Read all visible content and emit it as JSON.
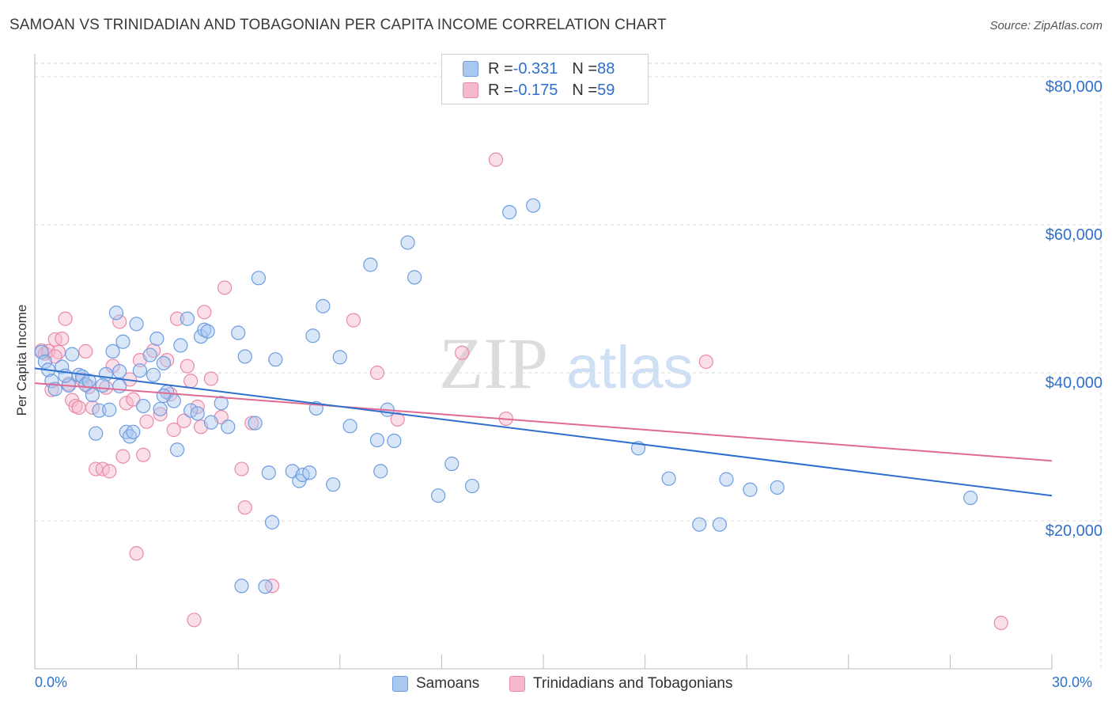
{
  "title": "SAMOAN VS TRINIDADIAN AND TOBAGONIAN PER CAPITA INCOME CORRELATION CHART",
  "source": "Source: ZipAtlas.com",
  "watermark": {
    "zip": "ZIP",
    "atlas": "atlas"
  },
  "legend_top": {
    "rows": [
      {
        "r_label": "R = ",
        "r_value": "-0.331",
        "n_label": "N = ",
        "n_value": "88"
      },
      {
        "r_label": "R = ",
        "r_value": "-0.175",
        "n_label": "N = ",
        "n_value": "59"
      }
    ]
  },
  "legend_bottom": {
    "series1": "Samoans",
    "series2": "Trinidadians and Tobagonians"
  },
  "colors": {
    "blue_fill": "#a9c8f0",
    "blue_stroke": "#6d9de0",
    "blue_line": "#2f6fce",
    "pink_fill": "#f6b9cc",
    "pink_stroke": "#e88aa8",
    "pink_line": "#e06a92",
    "grid": "#d9d9d9",
    "accent_text": "#2f6fce"
  },
  "chart_data": {
    "type": "scatter",
    "title": "SAMOAN VS TRINIDADIAN AND TOBAGONIAN PER CAPITA INCOME CORRELATION CHART",
    "xlabel": "",
    "ylabel": "Per Capita Income",
    "xlim": [
      0,
      30
    ],
    "ylim": [
      0,
      80000
    ],
    "x_tick_labels": [
      "0.0%",
      "30.0%"
    ],
    "y_ticks": [
      20000,
      40000,
      60000,
      80000
    ],
    "y_tick_labels": [
      "$20,000",
      "$40,000",
      "$60,000",
      "$80,000"
    ],
    "grid": true,
    "legend_position": "top-center",
    "series": [
      {
        "name": "Samoans",
        "r": -0.331,
        "n": 88,
        "trend": {
          "x": [
            0,
            30
          ],
          "y": [
            40600,
            23400
          ]
        },
        "points": [
          [
            0.2,
            42800
          ],
          [
            0.3,
            41500
          ],
          [
            0.4,
            40400
          ],
          [
            0.5,
            38900
          ],
          [
            0.6,
            37800
          ],
          [
            0.8,
            40800
          ],
          [
            1.0,
            38300
          ],
          [
            1.1,
            42500
          ],
          [
            1.3,
            39700
          ],
          [
            1.4,
            39500
          ],
          [
            1.5,
            38400
          ],
          [
            1.7,
            37000
          ],
          [
            1.8,
            31800
          ],
          [
            1.9,
            34900
          ],
          [
            2.1,
            39800
          ],
          [
            2.2,
            35000
          ],
          [
            2.3,
            42900
          ],
          [
            2.4,
            48100
          ],
          [
            2.5,
            38200
          ],
          [
            2.6,
            44200
          ],
          [
            2.7,
            32000
          ],
          [
            2.8,
            31400
          ],
          [
            2.9,
            32000
          ],
          [
            3.0,
            46600
          ],
          [
            3.1,
            40300
          ],
          [
            3.2,
            35500
          ],
          [
            3.4,
            42400
          ],
          [
            3.5,
            39700
          ],
          [
            3.6,
            44600
          ],
          [
            3.7,
            35100
          ],
          [
            3.8,
            41300
          ],
          [
            3.9,
            37400
          ],
          [
            4.1,
            36200
          ],
          [
            4.2,
            29600
          ],
          [
            4.3,
            43700
          ],
          [
            4.5,
            47300
          ],
          [
            4.6,
            34900
          ],
          [
            4.8,
            34500
          ],
          [
            4.9,
            44900
          ],
          [
            5.0,
            45800
          ],
          [
            5.1,
            45600
          ],
          [
            5.2,
            33300
          ],
          [
            5.5,
            35900
          ],
          [
            5.7,
            32700
          ],
          [
            6.0,
            45400
          ],
          [
            6.2,
            42200
          ],
          [
            6.5,
            33200
          ],
          [
            6.6,
            52800
          ],
          [
            6.9,
            26500
          ],
          [
            7.0,
            19800
          ],
          [
            7.1,
            41800
          ],
          [
            7.6,
            26700
          ],
          [
            7.8,
            25400
          ],
          [
            7.9,
            26200
          ],
          [
            8.1,
            26500
          ],
          [
            8.2,
            45000
          ],
          [
            8.3,
            35200
          ],
          [
            8.5,
            49000
          ],
          [
            8.8,
            24900
          ],
          [
            9.0,
            42100
          ],
          [
            9.3,
            32800
          ],
          [
            9.9,
            54600
          ],
          [
            10.1,
            30900
          ],
          [
            10.2,
            26700
          ],
          [
            10.4,
            35000
          ],
          [
            10.6,
            30800
          ],
          [
            11.0,
            57600
          ],
          [
            11.2,
            52900
          ],
          [
            11.9,
            23400
          ],
          [
            12.3,
            27700
          ],
          [
            12.9,
            24700
          ],
          [
            14.0,
            61700
          ],
          [
            14.7,
            62600
          ],
          [
            17.8,
            29800
          ],
          [
            18.7,
            25700
          ],
          [
            19.6,
            19500
          ],
          [
            20.2,
            19500
          ],
          [
            20.4,
            25600
          ],
          [
            21.1,
            24200
          ],
          [
            21.9,
            24500
          ],
          [
            27.6,
            23100
          ],
          [
            6.1,
            11200
          ],
          [
            6.8,
            11100
          ],
          [
            3.8,
            36900
          ],
          [
            2.0,
            38300
          ],
          [
            1.6,
            38900
          ],
          [
            0.9,
            39600
          ],
          [
            2.5,
            40200
          ]
        ]
      },
      {
        "name": "Trinidadians and Tobagonians",
        "r": -0.175,
        "n": 59,
        "trend": {
          "x": [
            0,
            30
          ],
          "y": [
            38600,
            28100
          ]
        },
        "points": [
          [
            0.2,
            43000
          ],
          [
            0.3,
            42600
          ],
          [
            0.4,
            42900
          ],
          [
            0.5,
            37700
          ],
          [
            0.6,
            44500
          ],
          [
            0.7,
            42800
          ],
          [
            0.8,
            44600
          ],
          [
            0.9,
            47300
          ],
          [
            1.0,
            38500
          ],
          [
            1.1,
            36300
          ],
          [
            1.2,
            35500
          ],
          [
            1.3,
            35300
          ],
          [
            1.4,
            39100
          ],
          [
            1.5,
            42900
          ],
          [
            1.6,
            38100
          ],
          [
            1.7,
            35300
          ],
          [
            1.8,
            27000
          ],
          [
            2.0,
            27000
          ],
          [
            2.2,
            26700
          ],
          [
            2.3,
            40900
          ],
          [
            2.5,
            46900
          ],
          [
            2.6,
            28700
          ],
          [
            2.7,
            35900
          ],
          [
            2.8,
            39100
          ],
          [
            2.9,
            36400
          ],
          [
            3.0,
            15600
          ],
          [
            3.1,
            41700
          ],
          [
            3.2,
            28900
          ],
          [
            3.3,
            33400
          ],
          [
            3.5,
            43000
          ],
          [
            3.7,
            34400
          ],
          [
            3.9,
            41700
          ],
          [
            4.0,
            37100
          ],
          [
            4.1,
            32300
          ],
          [
            4.2,
            47300
          ],
          [
            4.4,
            33500
          ],
          [
            4.5,
            40900
          ],
          [
            4.6,
            38900
          ],
          [
            4.8,
            35400
          ],
          [
            4.9,
            32700
          ],
          [
            5.0,
            48200
          ],
          [
            5.2,
            39200
          ],
          [
            5.5,
            34000
          ],
          [
            5.6,
            51500
          ],
          [
            6.1,
            27000
          ],
          [
            6.2,
            21800
          ],
          [
            6.4,
            33200
          ],
          [
            7.0,
            11200
          ],
          [
            4.7,
            6600
          ],
          [
            9.4,
            47100
          ],
          [
            10.1,
            40000
          ],
          [
            10.7,
            33700
          ],
          [
            12.6,
            42700
          ],
          [
            13.6,
            68800
          ],
          [
            13.9,
            33800
          ],
          [
            19.8,
            41500
          ],
          [
            28.5,
            6200
          ],
          [
            0.6,
            42200
          ],
          [
            2.1,
            38000
          ]
        ]
      }
    ]
  }
}
